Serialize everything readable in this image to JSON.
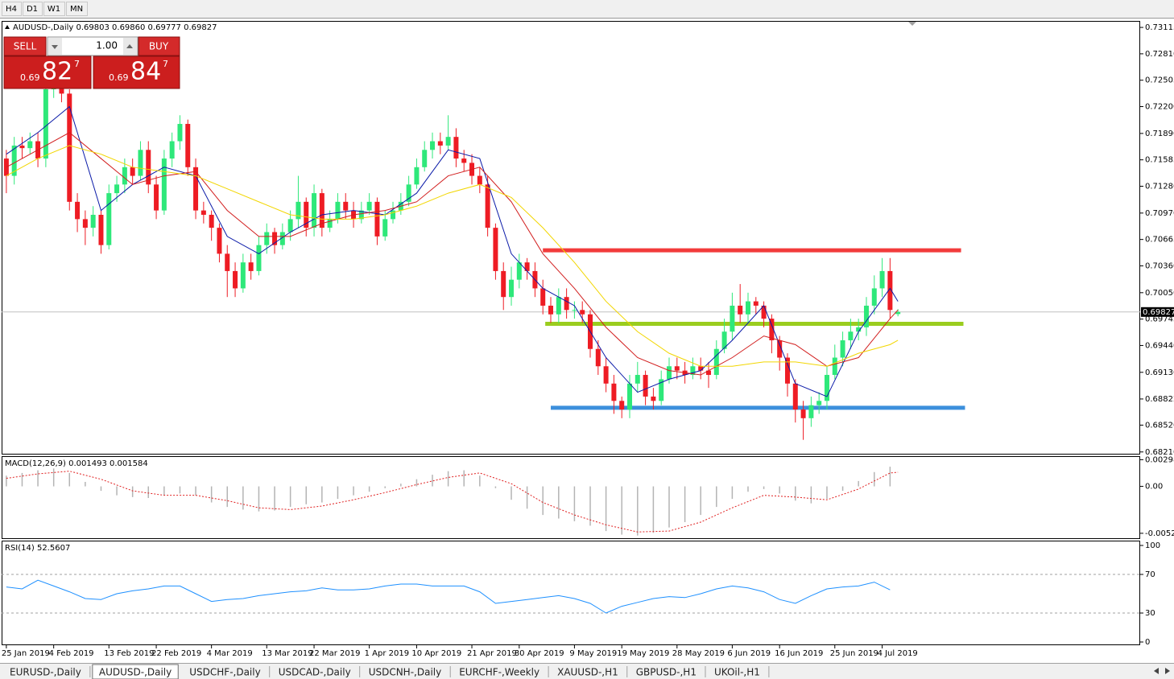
{
  "toolbar": {
    "timeframes": [
      "H4",
      "D1",
      "W1",
      "MN"
    ]
  },
  "symbol_header": "AUDUSD-,Daily  0.69803 0.69860 0.69777 0.69827",
  "trade_panel": {
    "sell": "SELL",
    "buy": "BUY",
    "lots": "1.00",
    "bid": {
      "big": "0.69",
      "main": "82",
      "pip": "7"
    },
    "ask": {
      "big": "0.69",
      "main": "84",
      "pip": "7"
    }
  },
  "chart_data": [
    {
      "type": "candlestick",
      "open": [
        0.716,
        0.714,
        0.7175,
        0.7172,
        0.718,
        0.716,
        0.724,
        0.726,
        0.7235,
        0.711,
        0.709,
        0.708,
        0.7095,
        0.706,
        0.712,
        0.713,
        0.715,
        0.714,
        0.717,
        0.713,
        0.71,
        0.716,
        0.718,
        0.72,
        0.715,
        0.71,
        0.7095,
        0.708,
        0.705,
        0.703,
        0.701,
        0.704,
        0.703,
        0.706,
        0.7075,
        0.706,
        0.7075,
        0.709,
        0.711,
        0.708,
        0.712,
        0.708,
        0.709,
        0.711,
        0.71,
        0.709,
        0.71,
        0.711,
        0.707,
        0.709,
        0.71,
        0.711,
        0.713,
        0.715,
        0.717,
        0.718,
        0.7175,
        0.7185,
        0.716,
        0.7155,
        0.714,
        0.713,
        0.708,
        0.703,
        0.7,
        0.702,
        0.704,
        0.703,
        0.701,
        0.699,
        0.698,
        0.7,
        0.6985,
        0.6985,
        0.698,
        0.694,
        0.692,
        0.69,
        0.688,
        0.687,
        0.69,
        0.691,
        0.6885,
        0.688,
        0.6905,
        0.692,
        0.6915,
        0.691,
        0.692,
        0.6915,
        0.691,
        0.694,
        0.696,
        0.699,
        0.698,
        0.6995,
        0.699,
        0.6975,
        0.695,
        0.693,
        0.69,
        0.687,
        0.686,
        0.6875,
        0.688,
        0.691,
        0.693,
        0.695,
        0.696,
        0.6965,
        0.699,
        0.701,
        0.703,
        0.69803
      ],
      "high": [
        0.717,
        0.7185,
        0.7185,
        0.719,
        0.719,
        0.725,
        0.727,
        0.7265,
        0.724,
        0.712,
        0.71,
        0.7105,
        0.71,
        0.713,
        0.714,
        0.716,
        0.716,
        0.718,
        0.718,
        0.714,
        0.717,
        0.719,
        0.721,
        0.7205,
        0.716,
        0.711,
        0.71,
        0.7085,
        0.706,
        0.704,
        0.705,
        0.705,
        0.707,
        0.7085,
        0.708,
        0.7085,
        0.71,
        0.714,
        0.7115,
        0.713,
        0.7125,
        0.71,
        0.712,
        0.712,
        0.711,
        0.711,
        0.712,
        0.7115,
        0.71,
        0.711,
        0.712,
        0.714,
        0.716,
        0.718,
        0.719,
        0.719,
        0.721,
        0.7195,
        0.717,
        0.7165,
        0.715,
        0.714,
        0.7085,
        0.704,
        0.7035,
        0.705,
        0.7045,
        0.704,
        0.702,
        0.7,
        0.701,
        0.701,
        0.6995,
        0.6995,
        0.6985,
        0.695,
        0.693,
        0.691,
        0.6885,
        0.691,
        0.6925,
        0.6915,
        0.6895,
        0.6915,
        0.693,
        0.693,
        0.6925,
        0.693,
        0.693,
        0.6925,
        0.695,
        0.6975,
        0.7005,
        0.7015,
        0.7005,
        0.7,
        0.6995,
        0.698,
        0.6955,
        0.6935,
        0.6905,
        0.688,
        0.6885,
        0.689,
        0.692,
        0.6945,
        0.696,
        0.6975,
        0.6975,
        0.7,
        0.7025,
        0.7045,
        0.7045,
        0.6986
      ],
      "low": [
        0.712,
        0.713,
        0.716,
        0.7165,
        0.715,
        0.715,
        0.723,
        0.7225,
        0.71,
        0.7075,
        0.706,
        0.707,
        0.705,
        0.7055,
        0.711,
        0.712,
        0.713,
        0.7135,
        0.712,
        0.709,
        0.7095,
        0.715,
        0.717,
        0.714,
        0.709,
        0.7085,
        0.7065,
        0.704,
        0.7,
        0.7,
        0.7005,
        0.702,
        0.7025,
        0.705,
        0.705,
        0.7055,
        0.7065,
        0.708,
        0.707,
        0.707,
        0.707,
        0.7075,
        0.7085,
        0.709,
        0.708,
        0.7085,
        0.7095,
        0.706,
        0.7065,
        0.7085,
        0.7095,
        0.7105,
        0.7125,
        0.7145,
        0.716,
        0.7165,
        0.717,
        0.715,
        0.7145,
        0.713,
        0.712,
        0.707,
        0.702,
        0.6985,
        0.699,
        0.701,
        0.702,
        0.7,
        0.698,
        0.697,
        0.697,
        0.6975,
        0.6975,
        0.697,
        0.693,
        0.691,
        0.689,
        0.6865,
        0.686,
        0.686,
        0.689,
        0.6875,
        0.687,
        0.6875,
        0.69,
        0.6905,
        0.69,
        0.6905,
        0.6905,
        0.6895,
        0.6905,
        0.6935,
        0.695,
        0.697,
        0.697,
        0.698,
        0.6965,
        0.6935,
        0.6915,
        0.6885,
        0.6855,
        0.6835,
        0.685,
        0.6865,
        0.687,
        0.6905,
        0.692,
        0.694,
        0.695,
        0.6955,
        0.698,
        0.7,
        0.6975,
        0.69777
      ],
      "close": [
        0.714,
        0.7175,
        0.7172,
        0.718,
        0.716,
        0.724,
        0.726,
        0.7235,
        0.711,
        0.709,
        0.708,
        0.7095,
        0.706,
        0.712,
        0.713,
        0.715,
        0.714,
        0.717,
        0.713,
        0.71,
        0.716,
        0.718,
        0.72,
        0.715,
        0.71,
        0.7095,
        0.708,
        0.705,
        0.703,
        0.701,
        0.704,
        0.703,
        0.706,
        0.7075,
        0.706,
        0.7075,
        0.709,
        0.711,
        0.708,
        0.712,
        0.708,
        0.709,
        0.711,
        0.71,
        0.709,
        0.71,
        0.711,
        0.707,
        0.709,
        0.71,
        0.711,
        0.713,
        0.715,
        0.717,
        0.718,
        0.7175,
        0.7185,
        0.716,
        0.7155,
        0.714,
        0.713,
        0.708,
        0.703,
        0.7,
        0.702,
        0.704,
        0.703,
        0.701,
        0.699,
        0.698,
        0.7,
        0.6985,
        0.6985,
        0.698,
        0.694,
        0.692,
        0.69,
        0.688,
        0.687,
        0.69,
        0.691,
        0.6885,
        0.688,
        0.6905,
        0.692,
        0.6915,
        0.691,
        0.692,
        0.6915,
        0.691,
        0.694,
        0.696,
        0.699,
        0.698,
        0.6995,
        0.699,
        0.6975,
        0.695,
        0.693,
        0.69,
        0.687,
        0.686,
        0.6875,
        0.688,
        0.691,
        0.693,
        0.695,
        0.696,
        0.6965,
        0.699,
        0.701,
        0.703,
        0.6985,
        0.69827
      ],
      "up_color": "#2ee87a",
      "down_color": "#ee1c24",
      "xlim": [
        -0.6,
        143.7
      ],
      "xticks": [
        {
          "value": 0,
          "label": "25 Jan 2019"
        },
        {
          "value": 6,
          "label": "4 Feb 2019"
        },
        {
          "value": 13,
          "label": "13 Feb 2019"
        },
        {
          "value": 19,
          "label": "22 Feb 2019"
        },
        {
          "value": 26,
          "label": "4 Mar 2019"
        },
        {
          "value": 33,
          "label": "13 Mar 2019"
        },
        {
          "value": 39,
          "label": "22 Mar 2019"
        },
        {
          "value": 46,
          "label": "1 Apr 2019"
        },
        {
          "value": 52,
          "label": "10 Apr 2019"
        },
        {
          "value": 59,
          "label": "21 Apr 2019"
        },
        {
          "value": 65,
          "label": "30 Apr 2019"
        },
        {
          "value": 72,
          "label": "9 May 2019"
        },
        {
          "value": 78,
          "label": "19 May 2019"
        },
        {
          "value": 85,
          "label": "28 May 2019"
        },
        {
          "value": 92,
          "label": "6 Jun 2019"
        },
        {
          "value": 98,
          "label": "16 Jun 2019"
        },
        {
          "value": 105,
          "label": "25 Jun 2019"
        },
        {
          "value": 111,
          "label": "4 Jul 2019"
        }
      ],
      "ylim": [
        0.6818,
        0.7319
      ],
      "yticks": [
        0.73115,
        {
          "value": 0.7281,
          "label": "0.72810"
        },
        0.72505,
        {
          "value": 0.722,
          "label": "0.72200"
        },
        {
          "value": 0.7189,
          "label": "0.71890"
        },
        0.71585,
        {
          "value": 0.7128,
          "label": "0.71280"
        },
        {
          "value": 0.7097,
          "label": "0.70970"
        },
        0.70665,
        {
          "value": 0.7036,
          "label": "0.70360"
        },
        {
          "value": 0.7005,
          "label": "0.70050"
        },
        0.69745,
        {
          "value": 0.6944,
          "label": "0.69440"
        },
        {
          "value": 0.6913,
          "label": "0.69130"
        },
        0.68822,
        {
          "value": 0.6852,
          "label": "0.68520"
        },
        {
          "value": 0.6821,
          "label": "0.68210"
        }
      ],
      "current_price": 0.69827,
      "overlays": [
        {
          "color": "#0a1aa8",
          "x": [
            0,
            4,
            8,
            12,
            16,
            20,
            24,
            28,
            32,
            36,
            40,
            44,
            48,
            52,
            56,
            60,
            64,
            68,
            72,
            76,
            80,
            84,
            88,
            92,
            96,
            100,
            104,
            108,
            112,
            113
          ],
          "values": [
            0.7165,
            0.719,
            0.722,
            0.71,
            0.713,
            0.715,
            0.714,
            0.707,
            0.705,
            0.7075,
            0.7095,
            0.71,
            0.7095,
            0.712,
            0.717,
            0.716,
            0.705,
            0.701,
            0.699,
            0.693,
            0.689,
            0.6905,
            0.6915,
            0.695,
            0.699,
            0.69,
            0.6885,
            0.696,
            0.701,
            0.6995
          ]
        },
        {
          "color": "#d21f1f",
          "x": [
            0,
            4,
            8,
            12,
            16,
            20,
            24,
            28,
            32,
            36,
            40,
            44,
            48,
            52,
            56,
            60,
            64,
            68,
            72,
            76,
            80,
            84,
            88,
            92,
            96,
            100,
            104,
            108,
            112,
            113
          ],
          "values": [
            0.715,
            0.717,
            0.719,
            0.716,
            0.713,
            0.714,
            0.7145,
            0.71,
            0.707,
            0.707,
            0.7085,
            0.7095,
            0.71,
            0.711,
            0.714,
            0.715,
            0.711,
            0.705,
            0.701,
            0.6965,
            0.693,
            0.6915,
            0.691,
            0.693,
            0.6955,
            0.6945,
            0.692,
            0.693,
            0.6975,
            0.6985
          ]
        },
        {
          "color": "#f2d600",
          "x": [
            0,
            4,
            8,
            12,
            16,
            20,
            24,
            28,
            32,
            36,
            40,
            44,
            48,
            52,
            56,
            60,
            64,
            68,
            72,
            76,
            80,
            84,
            88,
            92,
            96,
            100,
            104,
            108,
            112,
            113
          ],
          "values": [
            0.714,
            0.716,
            0.7175,
            0.7165,
            0.715,
            0.7145,
            0.714,
            0.7125,
            0.711,
            0.7095,
            0.709,
            0.709,
            0.7095,
            0.7105,
            0.712,
            0.713,
            0.7115,
            0.708,
            0.704,
            0.6995,
            0.696,
            0.6935,
            0.692,
            0.692,
            0.6925,
            0.6925,
            0.692,
            0.6935,
            0.6945,
            0.695
          ]
        }
      ],
      "levels": [
        {
          "value": 0.7054,
          "color": "#f23b3b",
          "x": [
            68,
            121
          ]
        },
        {
          "value": 0.6969,
          "color": "#9acd1e",
          "x": [
            68.3,
            121.3
          ]
        },
        {
          "value": 0.6872,
          "color": "#3c8fdc",
          "x": [
            69,
            121.5
          ]
        }
      ]
    },
    {
      "type": "macd",
      "title": "MACD(12,26,9) 0.001493 0.001584",
      "histogram": {
        "color": "#b4b4b4",
        "x": [
          0,
          2,
          4,
          6,
          8,
          10,
          12,
          14,
          16,
          18,
          20,
          22,
          24,
          26,
          28,
          30,
          32,
          34,
          36,
          38,
          40,
          42,
          44,
          46,
          48,
          50,
          52,
          54,
          56,
          58,
          60,
          62,
          64,
          66,
          68,
          70,
          72,
          74,
          76,
          78,
          80,
          82,
          84,
          86,
          88,
          90,
          92,
          94,
          96,
          98,
          100,
          102,
          104,
          106,
          108,
          110,
          112
        ],
        "values": [
          0.0012,
          0.0015,
          0.0018,
          0.002,
          0.0015,
          0.0005,
          -0.0005,
          -0.001,
          -0.0012,
          -0.0013,
          -0.001,
          -0.0008,
          -0.001,
          -0.0018,
          -0.0023,
          -0.0026,
          -0.0028,
          -0.0027,
          -0.0023,
          -0.002,
          -0.0018,
          -0.0014,
          -0.001,
          -0.0006,
          -0.0002,
          0.0003,
          0.0008,
          0.0013,
          0.0017,
          0.0018,
          0.0012,
          -0.0002,
          -0.0015,
          -0.0025,
          -0.0032,
          -0.0036,
          -0.0039,
          -0.0044,
          -0.005,
          -0.0054,
          -0.0055,
          -0.0052,
          -0.0046,
          -0.004,
          -0.0032,
          -0.0023,
          -0.0014,
          -0.0006,
          -0.0003,
          -0.0008,
          -0.0016,
          -0.0019,
          -0.0014,
          -0.0005,
          0.0006,
          0.0016,
          0.0022
        ]
      },
      "signal": {
        "color": "#e02020",
        "x": [
          0,
          4,
          8,
          12,
          16,
          20,
          24,
          28,
          32,
          36,
          40,
          44,
          48,
          52,
          56,
          60,
          64,
          68,
          72,
          76,
          80,
          84,
          88,
          92,
          96,
          100,
          104,
          108,
          112,
          113
        ],
        "values": [
          0.0009,
          0.0014,
          0.0017,
          0.0008,
          -0.0005,
          -0.001,
          -0.001,
          -0.0016,
          -0.0024,
          -0.0026,
          -0.0022,
          -0.0015,
          -0.0007,
          0.0002,
          0.001,
          0.0015,
          0.0003,
          -0.0018,
          -0.0032,
          -0.0043,
          -0.0051,
          -0.005,
          -0.004,
          -0.0024,
          -0.001,
          -0.0012,
          -0.0015,
          -0.0003,
          0.0015,
          0.00158
        ]
      },
      "ylim": [
        -0.0058,
        0.0032
      ],
      "yticks": [
        0.002984,
        {
          "value": 0,
          "label": "0.00"
        },
        {
          "value": -0.00525,
          "label": "-0.005250"
        }
      ]
    },
    {
      "type": "rsi",
      "title": "RSI(14) 52.5607",
      "series": {
        "color": "#1e90ff",
        "x": [
          0,
          2,
          4,
          6,
          8,
          10,
          12,
          14,
          16,
          18,
          20,
          22,
          24,
          26,
          28,
          30,
          32,
          34,
          36,
          38,
          40,
          42,
          44,
          46,
          48,
          50,
          52,
          54,
          56,
          58,
          60,
          62,
          64,
          66,
          68,
          70,
          72,
          74,
          76,
          78,
          80,
          82,
          84,
          86,
          88,
          90,
          92,
          94,
          96,
          98,
          100,
          102,
          104,
          106,
          108,
          110,
          112
        ],
        "values": [
          57,
          55,
          64,
          58,
          52,
          45,
          44,
          50,
          53,
          55,
          58,
          58,
          50,
          42,
          44,
          45,
          48,
          50,
          52,
          53,
          56,
          54,
          54,
          55,
          58,
          60,
          60,
          58,
          58,
          58,
          52,
          40,
          42,
          44,
          46,
          48,
          45,
          40,
          30,
          37,
          41,
          45,
          47,
          46,
          50,
          55,
          58,
          56,
          52,
          44,
          40,
          48,
          55,
          57,
          58,
          62,
          54
        ]
      },
      "ylim": [
        0,
        100
      ],
      "yticks": [
        100,
        70,
        30,
        0
      ]
    }
  ],
  "tabs": [
    "EURUSD-,Daily",
    "AUDUSD-,Daily",
    "USDCHF-,Daily",
    "USDCAD-,Daily",
    "USDCNH-,Daily",
    "EURCHF-,Weekly",
    "XAUUSD-,H1",
    "GBPUSD-,H1",
    "UKOil-,H1"
  ],
  "active_tab": 1
}
